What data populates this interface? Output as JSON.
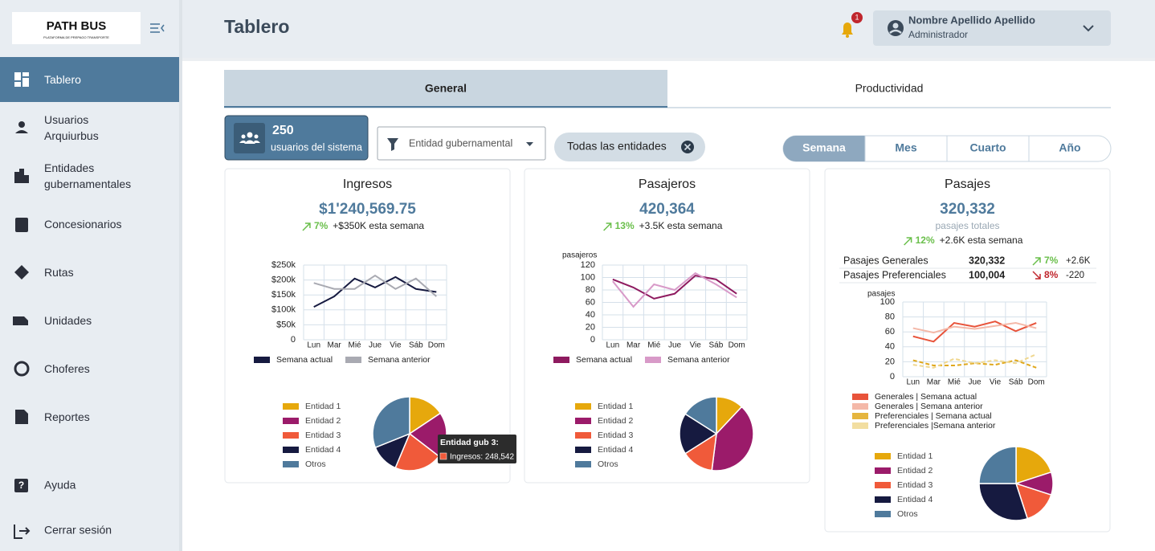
{
  "sidebar": {
    "logo": "PATH BUS",
    "logo_subtitle": "PLATAFORMA DE PREPAGO TRANSPORTE",
    "nav": [
      "Tablero",
      "Usuarios Arquiurbus",
      "Entidades gubernamentales",
      "Concesionarios",
      "Rutas",
      "Unidades",
      "Choferes",
      "Reportes"
    ],
    "bottom_nav": [
      "Ayuda",
      "Cerrar sesión"
    ]
  },
  "header": {
    "title": "Tablero",
    "notifications": 1,
    "user_name": "Nombre Apellido Apellido",
    "user_role": "Administrador"
  },
  "tabs": [
    "General",
    "Productividad"
  ],
  "users": {
    "count": 250,
    "label": "usuarios del sistema"
  },
  "filters": {
    "entity_select": "Entidad gubernamental",
    "chip": "Todas las entidades"
  },
  "periods": [
    "Semana",
    "Mes",
    "Cuarto",
    "Año"
  ],
  "cards": [
    {
      "title": "Ingresos",
      "value": "$1'240,569.75",
      "change": "7%",
      "note": "+$350K esta semana",
      "line_chart": {
        "type": "line",
        "categories": [
          "Lun",
          "Mar",
          "Mié",
          "Jue",
          "Vie",
          "Sáb",
          "Dom"
        ],
        "ylim": [
          0,
          250000
        ],
        "yticks": [
          0,
          {
            "value": 50000,
            "label": "$50k"
          },
          {
            "value": 100000,
            "label": "$100k"
          },
          {
            "value": 150000,
            "label": "$150k"
          },
          {
            "value": 200000,
            "label": "$200k"
          },
          {
            "value": 250000,
            "label": "$250k"
          }
        ],
        "grid": true,
        "series": [
          {
            "name": "Semana actual",
            "color": "#161a40",
            "values": [
              110000,
              145000,
              205000,
              175000,
              210000,
              170000,
              160000
            ]
          },
          {
            "name": "Semana anterior",
            "color": "#a9aab2",
            "values": [
              190000,
              170000,
              170000,
              215000,
              170000,
              205000,
              145000
            ]
          }
        ]
      },
      "pie_chart": {
        "type": "pie",
        "categories": [
          "Entidad 1",
          "Entidad 2",
          "Entidad 3",
          "Entidad 4",
          "Otros"
        ],
        "colors": [
          "#e6a80c",
          "#9b1b6a",
          "#f05a3a",
          "#161a40",
          "#4f7a9c"
        ],
        "values": [
          186000,
          236000,
          248542,
          150000,
          370000
        ],
        "tooltip": {
          "title": "Entidad gub 3:",
          "label": "Ingresos: 248,542"
        }
      }
    },
    {
      "title": "Pasajeros",
      "value": "420,364",
      "change": "13%",
      "note": "+3.5K esta semana",
      "line_chart": {
        "type": "line",
        "y_label": "pasajeros",
        "categories": [
          "Lun",
          "Mar",
          "Mié",
          "Jue",
          "Vie",
          "Sáb",
          "Dom"
        ],
        "ylim": [
          0,
          120
        ],
        "yticks": [
          0,
          20,
          40,
          60,
          80,
          100,
          120
        ],
        "grid": true,
        "series": [
          {
            "name": "Semana actual",
            "color": "#8e1a5f",
            "values": [
              97,
              84,
              66,
              74,
              103,
              97,
              74
            ]
          },
          {
            "name": "Semana anterior",
            "color": "#d89ac8",
            "values": [
              94,
              53,
              89,
              80,
              107,
              89,
              68
            ]
          }
        ]
      },
      "pie_chart": {
        "type": "pie",
        "categories": [
          "Entidad 1",
          "Entidad 2",
          "Entidad 3",
          "Entidad 4",
          "Otros"
        ],
        "colors": [
          "#e6a80c",
          "#9b1b6a",
          "#f05a3a",
          "#161a40",
          "#4f7a9c"
        ],
        "values": [
          12,
          40,
          14,
          18,
          16
        ]
      }
    },
    {
      "title": "Pasajes",
      "value": "320,332",
      "subtitle": "pasajes totales",
      "change": "12%",
      "note": "+2.6K esta semana",
      "breakdown": [
        {
          "name": "Pasajes Generales",
          "value": "320,332",
          "change": "7%",
          "delta": "+2.6K",
          "direction": "up"
        },
        {
          "name": "Pasajes Preferenciales",
          "value": "100,004",
          "change": "8%",
          "delta": "-220",
          "direction": "down"
        }
      ],
      "line_chart": {
        "type": "line",
        "y_label": "pasajes",
        "categories": [
          "Lun",
          "Mar",
          "Mié",
          "Jue",
          "Vie",
          "Sáb",
          "Dom"
        ],
        "ylim": [
          0,
          100
        ],
        "yticks": [
          0,
          20,
          40,
          60,
          80,
          100
        ],
        "grid": true,
        "series": [
          {
            "name": "Generales | Semana actual",
            "color": "#e8533a",
            "values": [
              54,
              47,
              72,
              67,
              74,
              61,
              72
            ]
          },
          {
            "name": "Generales | Semana anterior",
            "color": "#f4b8a8",
            "values": [
              65,
              59,
              67,
              64,
              68,
              72,
              65
            ]
          },
          {
            "name": "Preferenciales | Semana actual",
            "color": "#e0a81c",
            "dashed": true,
            "values": [
              22,
              15,
              15,
              18,
              16,
              22,
              12
            ]
          },
          {
            "name": "Preferenciales |Semana anterior",
            "color": "#f0d890",
            "dashed": true,
            "values": [
              16,
              12,
              24,
              18,
              22,
              18,
              30
            ]
          }
        ]
      },
      "pie_chart": {
        "type": "pie",
        "categories": [
          "Entidad 1",
          "Entidad 2",
          "Entidad 3",
          "Entidad 4",
          "Otros"
        ],
        "colors": [
          "#e6a80c",
          "#9b1b6a",
          "#f05a3a",
          "#161a40",
          "#4f7a9c"
        ],
        "values": [
          20,
          10,
          15,
          30,
          25
        ]
      }
    }
  ]
}
